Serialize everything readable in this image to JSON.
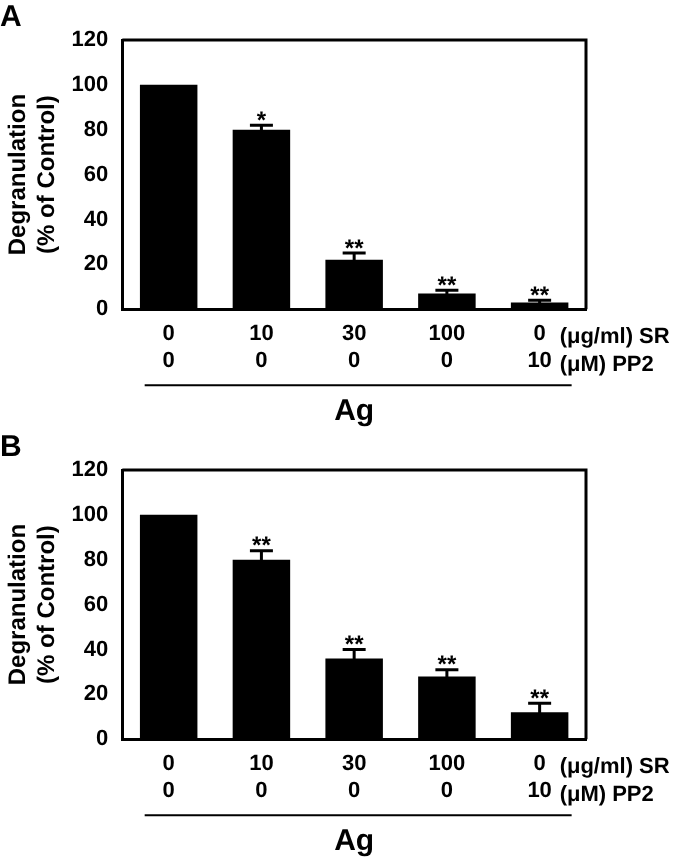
{
  "chart_data": [
    {
      "type": "bar",
      "title": "A",
      "ylabel": "Degranulation\n(% of Control)",
      "xlabel": "Ag",
      "categories": [
        "0\n0",
        "10\n0",
        "30\n0",
        "100\n0",
        "0\n10"
      ],
      "values": [
        100,
        80,
        22,
        7,
        3
      ],
      "errors": [
        null,
        2,
        3,
        1.5,
        1
      ],
      "value_labels": [
        null,
        "*",
        "**",
        "**",
        "**"
      ],
      "color": "#000000",
      "ylim": [
        0,
        120
      ],
      "yticks": [
        0,
        20,
        40,
        60,
        80,
        100,
        120
      ],
      "annotations": [
        "(μg/ml) SR",
        "(μM) PP2"
      ]
    },
    {
      "type": "bar",
      "title": "B",
      "ylabel": "Degranulation\n(% of Control)",
      "xlabel": "Ag",
      "categories": [
        "0\n0",
        "10\n0",
        "30\n0",
        "100\n0",
        "0\n10"
      ],
      "values": [
        100,
        80,
        36,
        28,
        12
      ],
      "errors": [
        null,
        4,
        4,
        3,
        4
      ],
      "value_labels": [
        null,
        "**",
        "**",
        "**",
        "**"
      ],
      "color": "#000000",
      "ylim": [
        0,
        120
      ],
      "yticks": [
        0,
        20,
        40,
        60,
        80,
        100,
        120
      ],
      "annotations": [
        "(μg/ml) SR",
        "(μM) PP2"
      ]
    }
  ]
}
